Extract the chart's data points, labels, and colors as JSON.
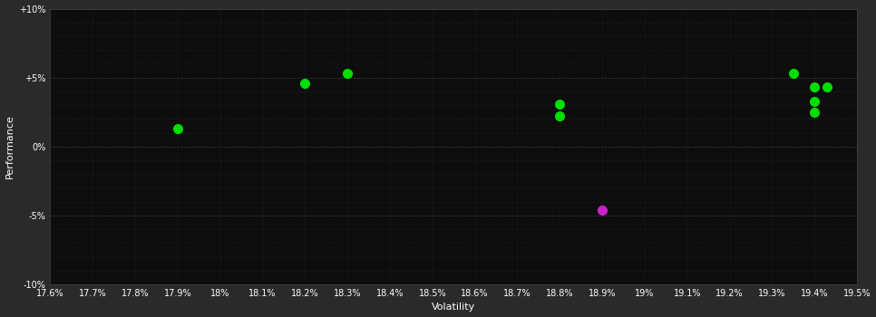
{
  "background_color": "#2a2a2a",
  "plot_bg_color": "#0d0d0d",
  "grid_color_major": "#3a3a3a",
  "grid_color_minor": "#222222",
  "text_color": "#ffffff",
  "xlabel": "Volatility",
  "ylabel": "Performance",
  "xlim": [
    0.176,
    0.195
  ],
  "ylim": [
    -0.1,
    0.1
  ],
  "xtick_step": 0.001,
  "ytick_major_step": 0.05,
  "ytick_minor_step": 0.01,
  "green_points": [
    [
      0.179,
      0.013
    ],
    [
      0.182,
      0.046
    ],
    [
      0.183,
      0.053
    ],
    [
      0.188,
      0.031
    ],
    [
      0.188,
      0.022
    ],
    [
      0.1935,
      0.053
    ],
    [
      0.194,
      0.043
    ],
    [
      0.1943,
      0.043
    ],
    [
      0.194,
      0.033
    ],
    [
      0.194,
      0.025
    ]
  ],
  "magenta_points": [
    [
      0.189,
      -0.046
    ]
  ],
  "green_color": "#00dd00",
  "magenta_color": "#cc22cc",
  "marker_size": 7
}
